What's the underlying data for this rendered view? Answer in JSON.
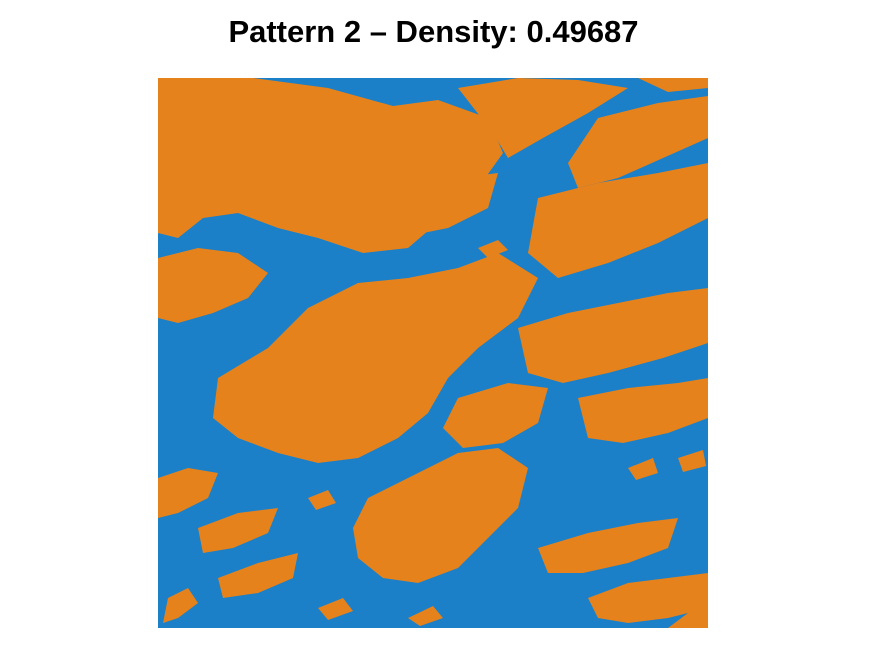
{
  "figure": {
    "title": "Pattern 2 – Density: 0.49687",
    "pattern_number": 2,
    "density": 0.49687
  },
  "colors": {
    "background_phase": "#1b80c8",
    "foreground_phase": "#e5821c",
    "page_background": "#ffffff"
  }
}
